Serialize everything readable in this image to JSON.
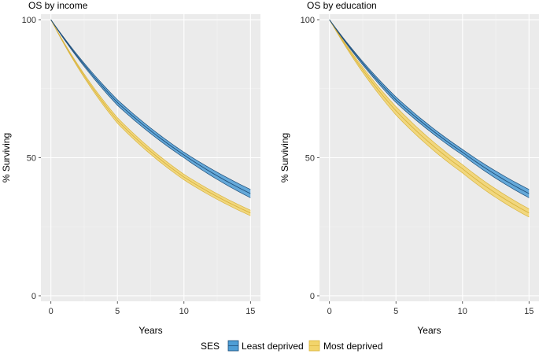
{
  "chart_data": [
    {
      "type": "line",
      "title": "OS by income",
      "xlabel": "Years",
      "ylabel": "% Surviving",
      "xlim": [
        -0.75,
        15.75
      ],
      "ylim": [
        -2,
        102
      ],
      "xticks": [
        0,
        5,
        10,
        15
      ],
      "yticks": [
        0,
        50,
        100
      ],
      "grid": true,
      "x": [
        0,
        5,
        10,
        15
      ],
      "series": [
        {
          "name": "Least deprived",
          "values": [
            100,
            70,
            51,
            37
          ],
          "lower": [
            100,
            69,
            50,
            35.5
          ],
          "upper": [
            100,
            71,
            52,
            38.5
          ],
          "color": "#4e9ed6"
        },
        {
          "name": "Most deprived",
          "values": [
            100,
            63.5,
            43,
            30
          ],
          "lower": [
            100,
            62.5,
            42,
            29
          ],
          "upper": [
            100,
            64.5,
            44,
            31
          ],
          "color": "#f2d46b"
        }
      ]
    },
    {
      "type": "line",
      "title": "OS by education",
      "xlabel": "Years",
      "ylabel": "% Surviving",
      "xlim": [
        -0.75,
        15.75
      ],
      "ylim": [
        -2,
        102
      ],
      "xticks": [
        0,
        5,
        10,
        15
      ],
      "yticks": [
        0,
        50,
        100
      ],
      "grid": true,
      "x": [
        0,
        5,
        10,
        15
      ],
      "series": [
        {
          "name": "Least deprived",
          "values": [
            100,
            71,
            52,
            37
          ],
          "lower": [
            100,
            70,
            51,
            35.5
          ],
          "upper": [
            100,
            72,
            53,
            38.5
          ],
          "color": "#4e9ed6"
        },
        {
          "name": "Most deprived",
          "values": [
            100,
            67,
            46,
            30
          ],
          "lower": [
            100,
            65.5,
            44.5,
            28.5
          ],
          "upper": [
            100,
            68.5,
            47.5,
            31.5
          ],
          "color": "#f2d46b"
        }
      ]
    }
  ],
  "legend": {
    "title": "SES",
    "position": "bottom",
    "items": [
      "Least deprived",
      "Most deprived"
    ]
  }
}
